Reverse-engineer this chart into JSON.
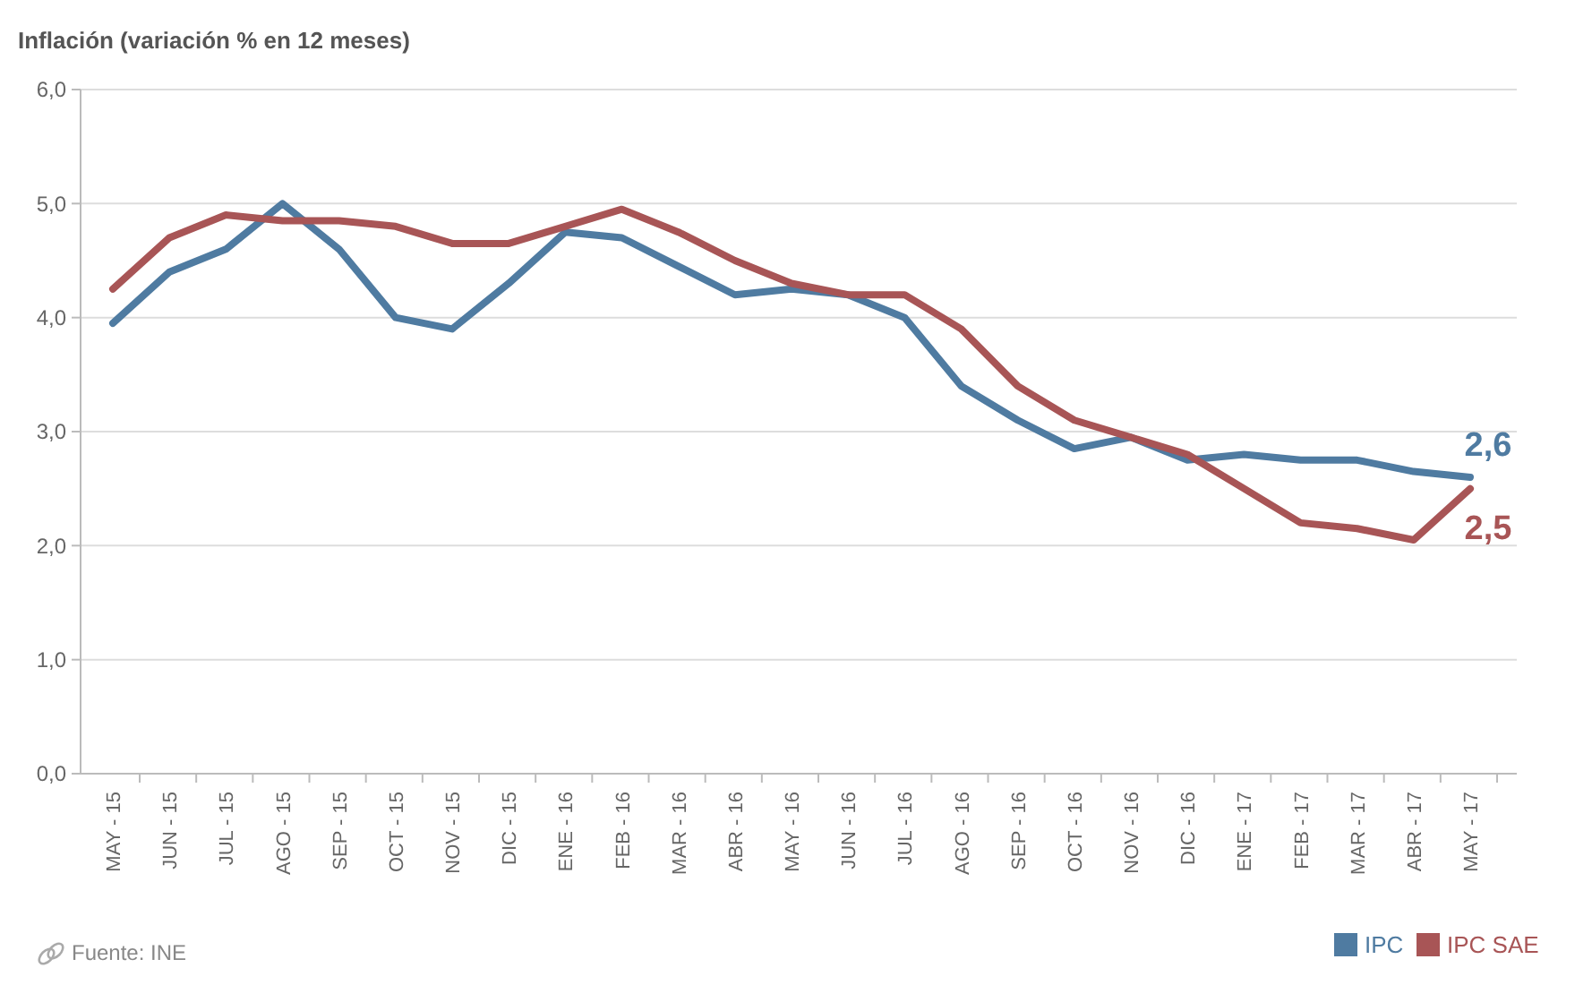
{
  "chart_data": {
    "type": "line",
    "title": "Inflación (variación % en 12 meses)",
    "categories": [
      "MAY - 15",
      "JUN - 15",
      "JUL - 15",
      "AGO - 15",
      "SEP - 15",
      "OCT - 15",
      "NOV - 15",
      "DIC - 15",
      "ENE - 16",
      "FEB - 16",
      "MAR - 16",
      "ABR - 16",
      "MAY - 16",
      "JUN - 16",
      "JUL - 16",
      "AGO - 16",
      "SEP - 16",
      "OCT - 16",
      "NOV - 16",
      "DIC - 16",
      "ENE - 17",
      "FEB - 17",
      "MAR - 17",
      "ABR - 17",
      "MAY - 17"
    ],
    "series": [
      {
        "name": "IPC",
        "color": "#4f7ba1",
        "values": [
          3.95,
          4.4,
          4.6,
          5.0,
          4.6,
          4.0,
          3.9,
          4.3,
          4.75,
          4.7,
          4.45,
          4.2,
          4.25,
          4.2,
          4.0,
          3.4,
          3.1,
          2.85,
          2.95,
          2.75,
          2.8,
          2.75,
          2.75,
          2.65,
          2.6
        ],
        "value_labels": [
          null,
          null,
          null,
          null,
          null,
          null,
          null,
          null,
          null,
          null,
          null,
          null,
          null,
          null,
          null,
          null,
          null,
          null,
          null,
          null,
          null,
          null,
          null,
          null,
          "2,6"
        ]
      },
      {
        "name": "IPC SAE",
        "color": "#a85556",
        "values": [
          4.25,
          4.7,
          4.9,
          4.85,
          4.85,
          4.8,
          4.65,
          4.65,
          4.8,
          4.95,
          4.75,
          4.5,
          4.3,
          4.2,
          4.2,
          3.9,
          3.4,
          3.1,
          2.95,
          2.8,
          2.5,
          2.2,
          2.15,
          2.05,
          2.5
        ],
        "value_labels": [
          null,
          null,
          null,
          null,
          null,
          null,
          null,
          null,
          null,
          null,
          null,
          null,
          null,
          null,
          null,
          null,
          null,
          null,
          null,
          null,
          null,
          null,
          null,
          null,
          "2,5"
        ]
      }
    ],
    "ylim": [
      0,
      6
    ],
    "yticks": [
      {
        "value": 0,
        "label": "0,0"
      },
      {
        "value": 1,
        "label": "1,0"
      },
      {
        "value": 2,
        "label": "2,0"
      },
      {
        "value": 3,
        "label": "3,0"
      },
      {
        "value": 4,
        "label": "4,0"
      },
      {
        "value": 5,
        "label": "5,0"
      },
      {
        "value": 6,
        "label": "6,0"
      }
    ],
    "grid": "y",
    "legend": "bottom right",
    "marker": "none",
    "line_style": "solid",
    "annotations": [
      "Fuente: INE"
    ]
  }
}
